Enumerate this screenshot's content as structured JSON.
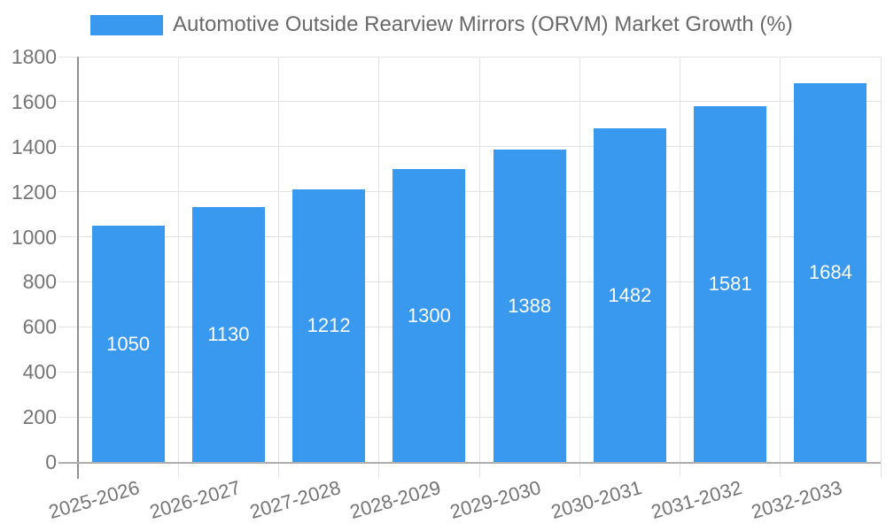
{
  "legend": {
    "label": "Automotive Outside Rearview Mirrors (ORVM) Market Growth (%)"
  },
  "colors": {
    "bar": "#3899EE",
    "grid": "#e3e3e3",
    "y_axis_line": "#8f8f8f",
    "x_axis_line": "#aeaeae",
    "tick_label": "#757575",
    "legend_text": "#696969",
    "value_label": "#ffffff",
    "background": "#ffffff"
  },
  "chart_data": {
    "type": "bar",
    "title": "Automotive Outside Rearview Mirrors (ORVM) Market Growth (%)",
    "categories": [
      "2025-2026",
      "2026-2027",
      "2027-2028",
      "2028-2029",
      "2029-2030",
      "2030-2031",
      "2031-2032",
      "2032-2033"
    ],
    "values": [
      1050,
      1130,
      1212,
      1300,
      1388,
      1482,
      1581,
      1684
    ],
    "value_labels": [
      "1050",
      "1130",
      "1212",
      "1300",
      "1388",
      "1482",
      "1581",
      "1684"
    ],
    "xlabel": "",
    "ylabel": "",
    "ylim": [
      0,
      1800
    ],
    "ytick_step": 200,
    "ytick_labels": [
      "0",
      "200",
      "400",
      "600",
      "800",
      "1000",
      "1200",
      "1400",
      "1600",
      "1800"
    ],
    "grid": true,
    "legend_position": "top-left",
    "value_label_position": "center-inside",
    "xtick_rotation_deg": -16
  }
}
